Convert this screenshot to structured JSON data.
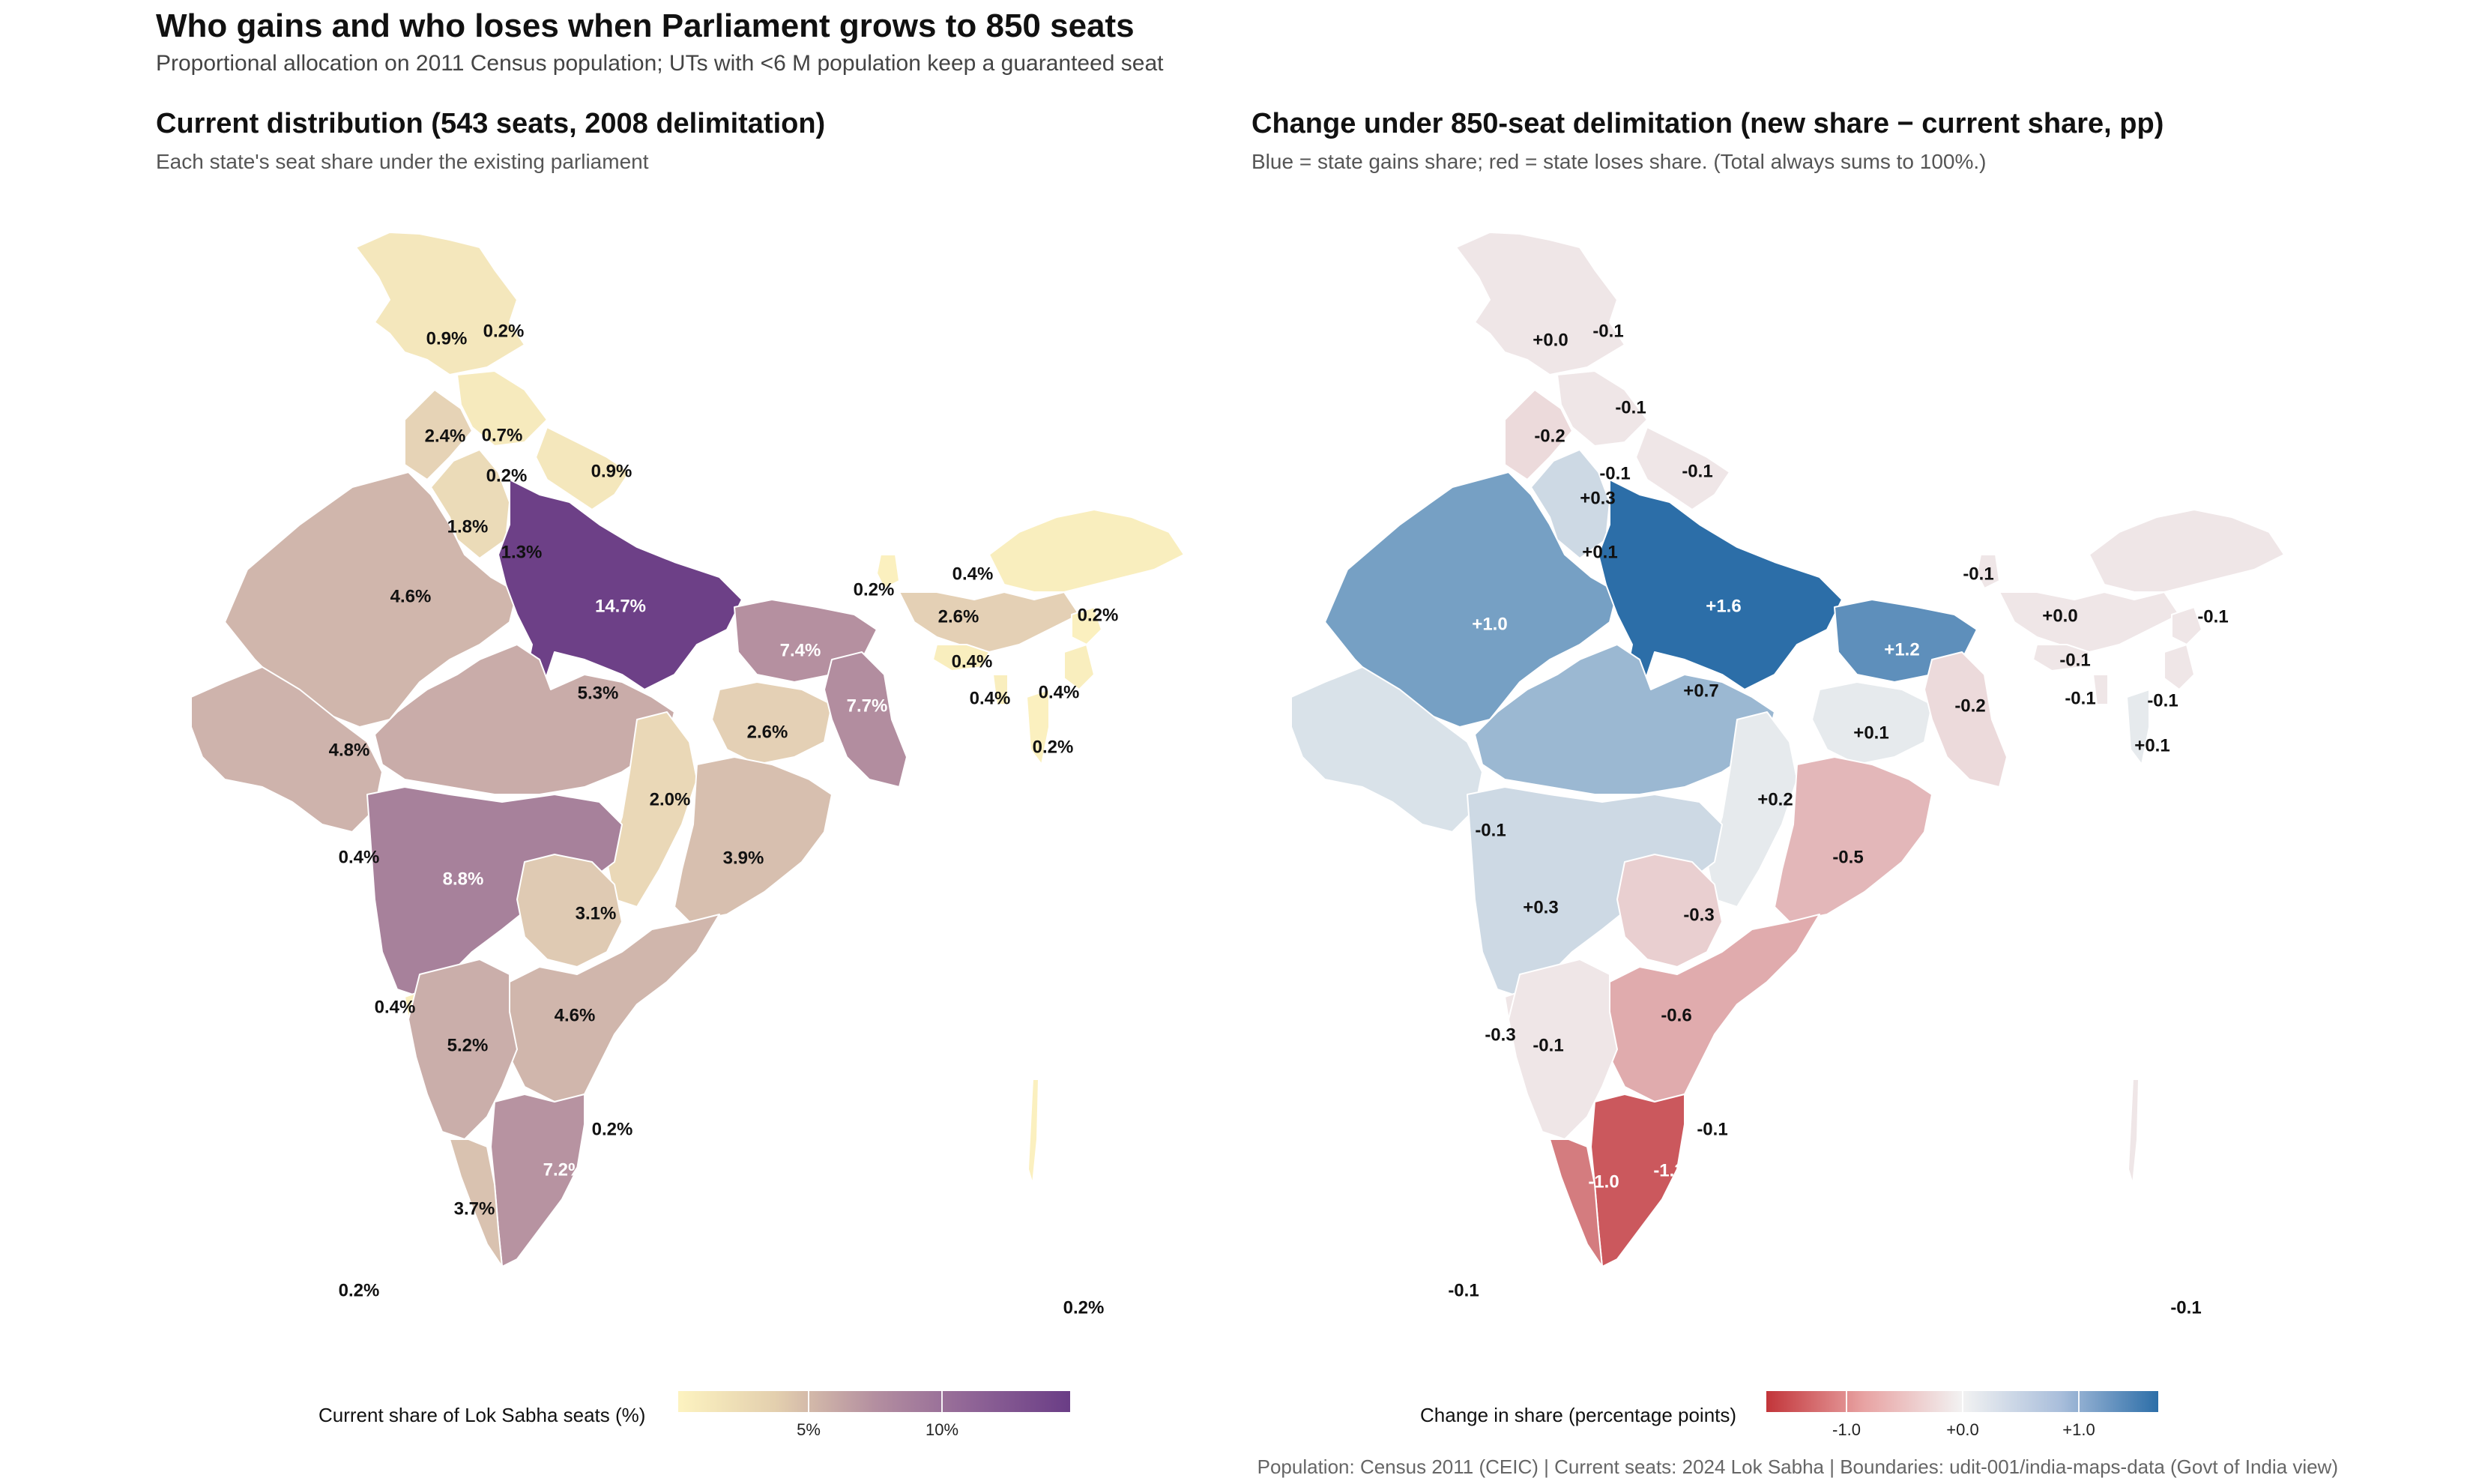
{
  "title": "Who gains and who loses when Parliament grows to 850 seats",
  "subtitle": "Proportional allocation on 2011 Census population; UTs with <6 M population keep a guaranteed seat",
  "left_panel": {
    "title": "Current distribution  (543 seats, 2008 delimitation)",
    "subtitle": "Each state's seat share under the existing parliament",
    "legend_title": "Current share of Lok Sabha seats (%)",
    "legend_ticks": [
      "5%",
      "10%"
    ],
    "labels": [
      "0.9%",
      "0.2%",
      "2.4%",
      "0.7%",
      "0.2%",
      "0.9%",
      "1.8%",
      "1.3%",
      "14.7%",
      "4.6%",
      "0.2%",
      "2.6%",
      "0.4%",
      "0.2%",
      "7.4%",
      "0.4%",
      "0.4%",
      "0.4%",
      "7.7%",
      "5.3%",
      "2.6%",
      "0.2%",
      "4.8%",
      "2.0%",
      "0.4%",
      "8.8%",
      "3.9%",
      "3.1%",
      "0.4%",
      "4.6%",
      "5.2%",
      "0.2%",
      "7.2%",
      "3.7%",
      "0.2%",
      "0.2%"
    ]
  },
  "right_panel": {
    "title": "Change under 850-seat delimitation (new share − current share, pp)",
    "subtitle": "Blue = state gains share; red = state loses share.  (Total always sums to 100%.)",
    "legend_title": "Change in share (percentage points)",
    "legend_ticks": [
      "-1.0",
      "+0.0",
      "+1.0"
    ],
    "labels": [
      "+0.0",
      "-0.1",
      "-0.1",
      "-0.2",
      "-0.1",
      "-0.1",
      "+0.3",
      "+0.1",
      "+1.6",
      "-0.1",
      "+1.0",
      "+0.0",
      "-0.1",
      "+1.2",
      "-0.1",
      "-0.1",
      "-0.1",
      "+0.7",
      "-0.2",
      "+0.1",
      "+0.1",
      "+0.2",
      "-0.1",
      "-0.5",
      "+0.3",
      "-0.3",
      "-0.6",
      "-0.3",
      "-0.1",
      "-0.1",
      "-1.0",
      "-1.3",
      "-0.1",
      "-0.1"
    ]
  },
  "caption": "Population: Census 2011 (CEIC)  |  Current seats: 2024 Lok Sabha  |  Boundaries: udit-001/india-maps-data (Govt of India view)",
  "colors": {
    "seq_low": "#fdf3c0",
    "seq_mid": "#b48fa0",
    "seq_high": "#6a3d86",
    "div_neg": "#c2353a",
    "div_mid": "#f2f2f2",
    "div_pos": "#2c6ea8"
  }
}
